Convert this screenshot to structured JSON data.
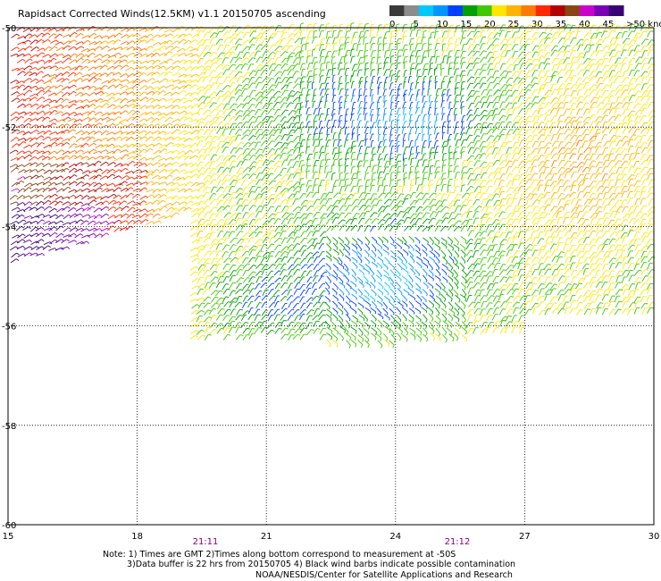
{
  "title": "Rapidsact Corrected Winds(12.5KM) v1.1 20150705 ascending",
  "colorbar": {
    "colors": [
      "#3a3a3a",
      "#8c8c8c",
      "#00c8ff",
      "#0096ff",
      "#0040ff",
      "#00a000",
      "#40c800",
      "#ffe600",
      "#ffb400",
      "#ff7a00",
      "#ff2800",
      "#b40000",
      "#8b4513",
      "#cc00cc",
      "#7a00b4",
      "#3a0078"
    ],
    "labels": [
      "0",
      "5",
      "10",
      "15",
      "20",
      "25",
      "30",
      "35",
      "40",
      "45",
      ">50 knots"
    ]
  },
  "axes": {
    "lat_labels": [
      "-50",
      "-52",
      "-54",
      "-56",
      "-58",
      "-60"
    ],
    "lon_labels": [
      "15",
      "18",
      "21",
      "24",
      "27",
      "30"
    ]
  },
  "pass_times": [
    "21:11",
    "21:12"
  ],
  "notes": [
    "Note: 1) Times are GMT 2)Times along bottom correspond to measurement at -50S",
    "3)Data buffer is 22 hrs from 20150705 4) Black wind barbs indicate possible contamination"
  ],
  "credit": "NOAA/NESDIS/Center for Satellite Applications and Research",
  "wind_fields": [
    {
      "region": "west",
      "dominant_color": "#ff7a00",
      "speed_range_knots": [
        20,
        40
      ]
    },
    {
      "region": "south-west edge",
      "dominant_color": "#cc00cc",
      "speed_range_knots": [
        40,
        50
      ]
    },
    {
      "region": "center",
      "dominant_color": "#00a000",
      "speed_range_knots": [
        10,
        20
      ]
    },
    {
      "region": "east",
      "dominant_color": "#ffb400",
      "speed_range_knots": [
        20,
        35
      ]
    }
  ]
}
